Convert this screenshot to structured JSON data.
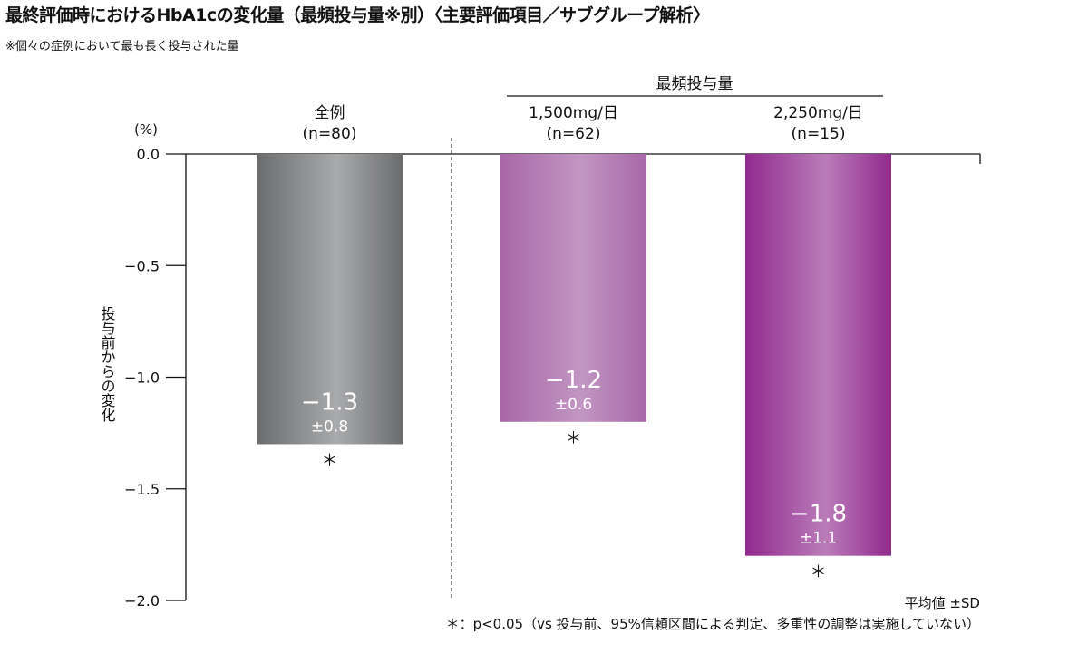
{
  "title": "最終評価時におけるHbA1cの変化量（最頻投与量※別）〈主要評価項目／サブグループ解析〉",
  "note": "※個々の症例において最も長く投与された量",
  "group_header": "最頻投与量",
  "footer_stat": "平均値 ±SD",
  "footnote": "＊：p<0.05（vs 投与前、95%信頼区間による判定、多重性の調整は実施していない）",
  "colors": {
    "gray_dark": "#6b6c6e",
    "gray_light": "#a9aaac",
    "purple_light_dark": "#a867a7",
    "purple_light_light": "#c296c3",
    "purple_dark_dark": "#912a8e",
    "purple_dark_light": "#ba7cb9"
  },
  "chart_data": {
    "type": "bar",
    "ylabel": "投与前からの変化",
    "yunit": "(%)",
    "ylim": [
      -2.0,
      0.0
    ],
    "yticks": [
      "0.0",
      "−0.5",
      "−1.0",
      "−1.5",
      "−2.0"
    ],
    "categories": [
      {
        "label": "全例",
        "n": "(n=80)",
        "value": -1.3,
        "value_label": "−1.3",
        "sd_label": "±0.8",
        "sig": "＊"
      },
      {
        "label": "1,500mg/日",
        "n": "(n=62)",
        "value": -1.2,
        "value_label": "−1.2",
        "sd_label": "±0.6",
        "sig": "＊"
      },
      {
        "label": "2,250mg/日",
        "n": "(n=15)",
        "value": -1.8,
        "value_label": "−1.8",
        "sd_label": "±1.1",
        "sig": "＊"
      }
    ]
  }
}
